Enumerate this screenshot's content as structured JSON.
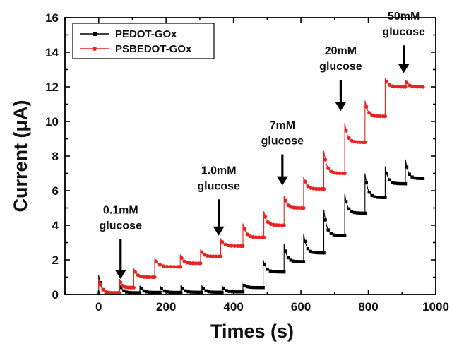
{
  "chart_data": {
    "type": "line",
    "xlabel": "Times (s)",
    "ylabel": "Current (μA)",
    "xlim": [
      -100,
      1000
    ],
    "ylim": [
      0,
      16
    ],
    "xticks": [
      0,
      200,
      400,
      600,
      800,
      1000
    ],
    "yticks": [
      0,
      2,
      4,
      6,
      8,
      10,
      12,
      14,
      16
    ],
    "legend_position": "top-left",
    "series": [
      {
        "name": "PEDOT-GOx",
        "color": "#000000",
        "marker": "square",
        "steps": [
          {
            "t": 0,
            "peak": 1.1,
            "base": 0.05
          },
          {
            "t": 62,
            "peak": 0.6,
            "base": 0.1
          },
          {
            "t": 122,
            "peak": 0.5,
            "base": 0.12
          },
          {
            "t": 182,
            "peak": 0.5,
            "base": 0.12
          },
          {
            "t": 244,
            "peak": 0.5,
            "base": 0.13
          },
          {
            "t": 306,
            "peak": 0.5,
            "base": 0.13
          },
          {
            "t": 366,
            "peak": 0.5,
            "base": 0.15
          },
          {
            "t": 428,
            "peak": 0.6,
            "base": 0.4
          },
          {
            "t": 488,
            "peak": 2.0,
            "base": 1.3
          },
          {
            "t": 550,
            "peak": 2.9,
            "base": 1.9
          },
          {
            "t": 608,
            "peak": 3.5,
            "base": 2.4
          },
          {
            "t": 668,
            "peak": 4.9,
            "base": 3.4
          },
          {
            "t": 730,
            "peak": 5.8,
            "base": 4.7
          },
          {
            "t": 790,
            "peak": 7.0,
            "base": 5.6
          },
          {
            "t": 850,
            "peak": 7.4,
            "base": 6.4
          },
          {
            "t": 910,
            "peak": 7.8,
            "base": 6.7
          }
        ],
        "end_t": 968
      },
      {
        "name": "PSBEDOT-GOx",
        "color": "#e8231f",
        "marker": "circle",
        "steps": [
          {
            "t": 0,
            "peak": 0.9,
            "base": 0.1
          },
          {
            "t": 62,
            "peak": 0.9,
            "base": 0.4
          },
          {
            "t": 104,
            "peak": 1.5,
            "base": 1.0
          },
          {
            "t": 166,
            "peak": 2.1,
            "base": 1.6
          },
          {
            "t": 242,
            "peak": 2.3,
            "base": 1.8
          },
          {
            "t": 302,
            "peak": 2.6,
            "base": 2.2
          },
          {
            "t": 362,
            "peak": 3.2,
            "base": 2.8
          },
          {
            "t": 428,
            "peak": 4.1,
            "base": 3.3
          },
          {
            "t": 490,
            "peak": 4.8,
            "base": 4.0
          },
          {
            "t": 550,
            "peak": 5.7,
            "base": 5.0
          },
          {
            "t": 608,
            "peak": 6.8,
            "base": 6.1
          },
          {
            "t": 668,
            "peak": 8.3,
            "base": 7.0
          },
          {
            "t": 730,
            "peak": 9.9,
            "base": 8.8
          },
          {
            "t": 790,
            "peak": 11.2,
            "base": 10.3
          },
          {
            "t": 850,
            "peak": 12.5,
            "base": 12.0
          },
          {
            "t": 910,
            "peak": 12.4,
            "base": 12.0
          }
        ],
        "end_t": 968
      }
    ],
    "annotations": [
      {
        "lines": [
          "0.1mM",
          "glucose"
        ],
        "x": 65,
        "y_tip": 0.9,
        "y_tail": 3.2
      },
      {
        "lines": [
          "1.0mM",
          "glucose"
        ],
        "x": 356,
        "y_tip": 3.4,
        "y_tail": 5.5
      },
      {
        "lines": [
          "7mM",
          "glucose"
        ],
        "x": 545,
        "y_tip": 6.3,
        "y_tail": 8.1
      },
      {
        "lines": [
          "20mM",
          "glucose"
        ],
        "x": 718,
        "y_tip": 10.6,
        "y_tail": 12.4
      },
      {
        "lines": [
          "50mM",
          "glucose"
        ],
        "x": 905,
        "y_tip": 12.8,
        "y_tail": 14.4
      }
    ]
  }
}
